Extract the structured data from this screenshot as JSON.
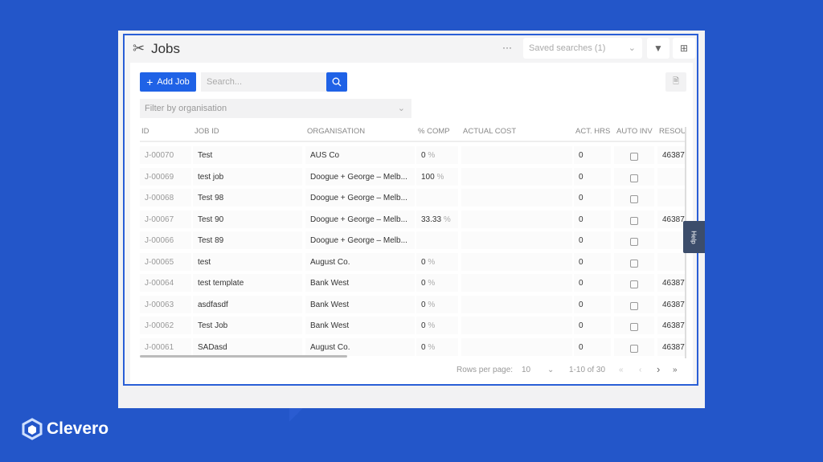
{
  "header": {
    "title": "Jobs",
    "more": "···",
    "saved_searches": "Saved searches (1)"
  },
  "toolbar": {
    "add_job": "Add Job",
    "search_placeholder": "Search...",
    "filter_placeholder": "Filter by organisation"
  },
  "table": {
    "columns": [
      "ID",
      "JOB ID",
      "ORGANISATION",
      "% COMP",
      "ACTUAL COST",
      "ACT. HRS",
      "AUTO INV",
      "RESOU"
    ],
    "rows": [
      {
        "id": "J-00070",
        "job": "Test",
        "org": "AUS Co",
        "comp": "0",
        "hrs": "0",
        "auto": false,
        "res": "46387"
      },
      {
        "id": "J-00069",
        "job": "test job",
        "org": "Doogue + George – Melb...",
        "comp": "100",
        "hrs": "0",
        "auto": false,
        "res": ""
      },
      {
        "id": "J-00068",
        "job": "Test 98",
        "org": "Doogue + George – Melb...",
        "comp": "",
        "hrs": "0",
        "auto": false,
        "res": ""
      },
      {
        "id": "J-00067",
        "job": "Test 90",
        "org": "Doogue + George – Melb...",
        "comp": "33.33",
        "hrs": "0",
        "auto": false,
        "res": "46387"
      },
      {
        "id": "J-00066",
        "job": "Test 89",
        "org": "Doogue + George – Melb...",
        "comp": "",
        "hrs": "0",
        "auto": false,
        "res": ""
      },
      {
        "id": "J-00065",
        "job": "test",
        "org": "August Co.",
        "comp": "0",
        "hrs": "0",
        "auto": false,
        "res": ""
      },
      {
        "id": "J-00064",
        "job": "test template",
        "org": "Bank West",
        "comp": "0",
        "hrs": "0",
        "auto": false,
        "res": "46387"
      },
      {
        "id": "J-00063",
        "job": "asdfasdf",
        "org": "Bank West",
        "comp": "0",
        "hrs": "0",
        "auto": false,
        "res": "46387"
      },
      {
        "id": "J-00062",
        "job": "Test Job",
        "org": "Bank West",
        "comp": "0",
        "hrs": "0",
        "auto": false,
        "res": "46387"
      },
      {
        "id": "J-00061",
        "job": "SADasd",
        "org": "August Co.",
        "comp": "0",
        "hrs": "0",
        "auto": false,
        "res": "46387"
      }
    ],
    "percent_sign": "%"
  },
  "pagination": {
    "rows_per_page_label": "Rows per page:",
    "rows_per_page": "10",
    "range": "1-10 of 30"
  },
  "help": "Help",
  "brand": "Clevero",
  "colors": {
    "accent": "#1f62e6",
    "background": "#2356c9"
  }
}
